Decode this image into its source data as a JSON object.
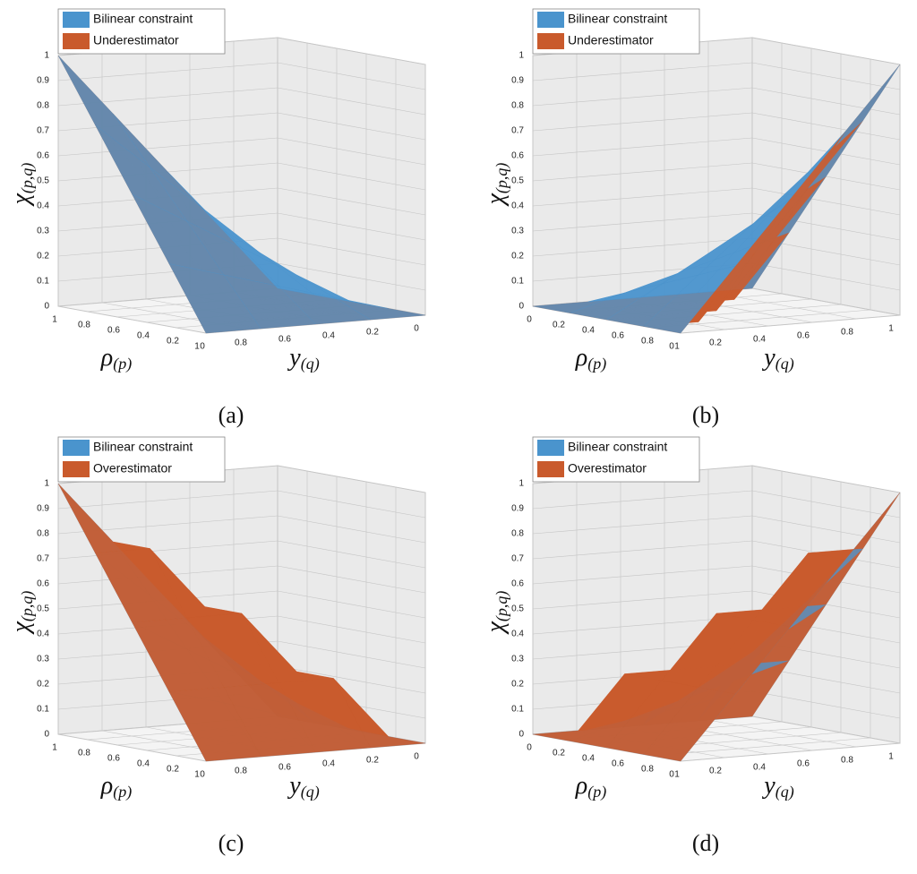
{
  "chart_data": [
    {
      "type": "surface",
      "caption": "(a)",
      "xlabel": "ρ",
      "xlabel_sub": "(p)",
      "ylabel": "y",
      "ylabel_sub": "(q)",
      "zlabel": "χ",
      "zlabel_sub": "(p,q)",
      "xlim": [
        1,
        0
      ],
      "ylim": [
        1,
        0
      ],
      "zlim": [
        0,
        1
      ],
      "xticks": [
        1,
        0.8,
        0.6,
        0.4,
        0.2,
        0
      ],
      "yticks": [
        1,
        0.8,
        0.6,
        0.4,
        0.2,
        0
      ],
      "zticks": [
        0,
        0.1,
        0.2,
        0.3,
        0.4,
        0.5,
        0.6,
        0.7,
        0.8,
        0.9,
        1
      ],
      "x": [
        0,
        0.25,
        0.5,
        0.75,
        1
      ],
      "y": [
        0,
        0.25,
        0.5,
        0.75,
        1
      ],
      "series": [
        {
          "name": "Bilinear constraint",
          "color": "#4a94cd",
          "values": [
            [
              0,
              0,
              0,
              0,
              0
            ],
            [
              0,
              0.0625,
              0.125,
              0.1875,
              0.25
            ],
            [
              0,
              0.125,
              0.25,
              0.375,
              0.5
            ],
            [
              0,
              0.1875,
              0.375,
              0.5625,
              0.75
            ],
            [
              0,
              0.25,
              0.5,
              0.75,
              1
            ]
          ]
        },
        {
          "name": "Underestimator",
          "color": "#c95a2c",
          "values": [
            [
              0,
              0,
              0,
              0,
              0
            ],
            [
              0,
              0,
              0,
              0,
              0.25
            ],
            [
              0,
              0,
              0,
              0.25,
              0.5
            ],
            [
              0,
              0,
              0.25,
              0.5,
              0.75
            ],
            [
              0,
              0.25,
              0.5,
              0.75,
              1
            ]
          ]
        }
      ]
    },
    {
      "type": "surface",
      "caption": "(b)",
      "xlabel": "ρ",
      "xlabel_sub": "(p)",
      "ylabel": "y",
      "ylabel_sub": "(q)",
      "zlabel": "χ",
      "zlabel_sub": "(p,q)",
      "xlim": [
        0,
        1
      ],
      "ylim": [
        0,
        1
      ],
      "zlim": [
        0,
        1
      ],
      "xticks": [
        0,
        0.2,
        0.4,
        0.6,
        0.8,
        1
      ],
      "yticks": [
        0,
        0.2,
        0.4,
        0.6,
        0.8,
        1
      ],
      "zticks": [
        0,
        0.1,
        0.2,
        0.3,
        0.4,
        0.5,
        0.6,
        0.7,
        0.8,
        0.9,
        1
      ],
      "x": [
        0,
        0.25,
        0.5,
        0.75,
        1
      ],
      "y": [
        0,
        0.25,
        0.5,
        0.75,
        1
      ],
      "series": [
        {
          "name": "Bilinear constraint",
          "color": "#4a94cd",
          "values": [
            [
              0,
              0,
              0,
              0,
              0
            ],
            [
              0,
              0.0625,
              0.125,
              0.1875,
              0.25
            ],
            [
              0,
              0.125,
              0.25,
              0.375,
              0.5
            ],
            [
              0,
              0.1875,
              0.375,
              0.5625,
              0.75
            ],
            [
              0,
              0.25,
              0.5,
              0.75,
              1
            ]
          ]
        },
        {
          "name": "Underestimator",
          "color": "#c95a2c",
          "values": [
            [
              0,
              0,
              0,
              0,
              0
            ],
            [
              0,
              0,
              0,
              0,
              0.25
            ],
            [
              0,
              0,
              0,
              0.25,
              0.5
            ],
            [
              0,
              0,
              0.25,
              0.5,
              0.75
            ],
            [
              0,
              0.25,
              0.5,
              0.75,
              1
            ]
          ]
        }
      ]
    },
    {
      "type": "surface",
      "caption": "(c)",
      "xlabel": "ρ",
      "xlabel_sub": "(p)",
      "ylabel": "y",
      "ylabel_sub": "(q)",
      "zlabel": "χ",
      "zlabel_sub": "(p,q)",
      "xlim": [
        1,
        0
      ],
      "ylim": [
        1,
        0
      ],
      "zlim": [
        0,
        1
      ],
      "xticks": [
        1,
        0.8,
        0.6,
        0.4,
        0.2,
        0
      ],
      "yticks": [
        1,
        0.8,
        0.6,
        0.4,
        0.2,
        0
      ],
      "zticks": [
        0,
        0.1,
        0.2,
        0.3,
        0.4,
        0.5,
        0.6,
        0.7,
        0.8,
        0.9,
        1
      ],
      "x": [
        0,
        0.25,
        0.5,
        0.75,
        1
      ],
      "y": [
        0,
        0.25,
        0.5,
        0.75,
        1
      ],
      "series": [
        {
          "name": "Bilinear constraint",
          "color": "#4a94cd",
          "values": [
            [
              0,
              0,
              0,
              0,
              0
            ],
            [
              0,
              0.0625,
              0.125,
              0.1875,
              0.25
            ],
            [
              0,
              0.125,
              0.25,
              0.375,
              0.5
            ],
            [
              0,
              0.1875,
              0.375,
              0.5625,
              0.75
            ],
            [
              0,
              0.25,
              0.5,
              0.75,
              1
            ]
          ]
        },
        {
          "name": "Overestimator",
          "color": "#c95a2c",
          "values": [
            [
              0,
              0,
              0,
              0,
              0
            ],
            [
              0,
              0.25,
              0.25,
              0.25,
              0.25
            ],
            [
              0,
              0.25,
              0.5,
              0.5,
              0.5
            ],
            [
              0,
              0.25,
              0.5,
              0.75,
              0.75
            ],
            [
              0,
              0.25,
              0.5,
              0.75,
              1
            ]
          ]
        }
      ]
    },
    {
      "type": "surface",
      "caption": "(d)",
      "xlabel": "ρ",
      "xlabel_sub": "(p)",
      "ylabel": "y",
      "ylabel_sub": "(q)",
      "zlabel": "χ",
      "zlabel_sub": "(p,q)",
      "xlim": [
        0,
        1
      ],
      "ylim": [
        0,
        1
      ],
      "zlim": [
        0,
        1
      ],
      "xticks": [
        0,
        0.2,
        0.4,
        0.6,
        0.8,
        1
      ],
      "yticks": [
        0,
        0.2,
        0.4,
        0.6,
        0.8,
        1
      ],
      "zticks": [
        0,
        0.1,
        0.2,
        0.3,
        0.4,
        0.5,
        0.6,
        0.7,
        0.8,
        0.9,
        1
      ],
      "x": [
        0,
        0.25,
        0.5,
        0.75,
        1
      ],
      "y": [
        0,
        0.25,
        0.5,
        0.75,
        1
      ],
      "series": [
        {
          "name": "Bilinear constraint",
          "color": "#4a94cd",
          "values": [
            [
              0,
              0,
              0,
              0,
              0
            ],
            [
              0,
              0.0625,
              0.125,
              0.1875,
              0.25
            ],
            [
              0,
              0.125,
              0.25,
              0.375,
              0.5
            ],
            [
              0,
              0.1875,
              0.375,
              0.5625,
              0.75
            ],
            [
              0,
              0.25,
              0.5,
              0.75,
              1
            ]
          ]
        },
        {
          "name": "Overestimator",
          "color": "#c95a2c",
          "values": [
            [
              0,
              0,
              0,
              0,
              0
            ],
            [
              0,
              0.25,
              0.25,
              0.25,
              0.25
            ],
            [
              0,
              0.25,
              0.5,
              0.5,
              0.5
            ],
            [
              0,
              0.25,
              0.5,
              0.75,
              0.75
            ],
            [
              0,
              0.25,
              0.5,
              0.75,
              1
            ]
          ]
        }
      ]
    }
  ]
}
